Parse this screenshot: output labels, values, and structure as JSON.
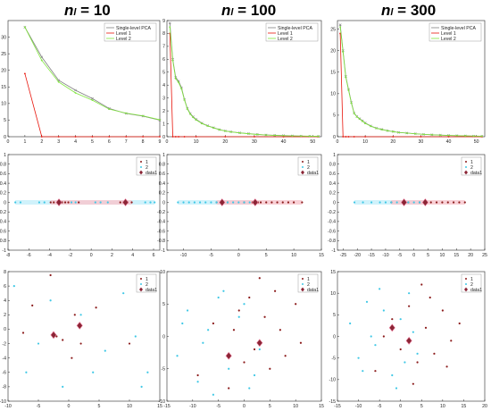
{
  "columns": [
    {
      "title_main": "n",
      "title_sub": "l",
      "title_eq": " = 10"
    },
    {
      "title_main": "n",
      "title_sub": "l",
      "title_eq": " = 100"
    },
    {
      "title_main": "n",
      "title_sub": "l",
      "title_eq": " = 300"
    }
  ],
  "colors": {
    "pca": "#808080",
    "level1": "#e8140a",
    "level2": "#7fe63c",
    "c1": "#8b1a1a",
    "c2": "#3fc8e6",
    "centroid": "#8b2535",
    "shade1": "#f7c8cf",
    "shade2": "#c8f0fa"
  },
  "chart_data": [
    {
      "type": "line",
      "panel": "r1c1",
      "xlim": [
        0,
        9
      ],
      "ylim": [
        0,
        35
      ],
      "xticks": [
        0,
        1,
        2,
        3,
        4,
        5,
        6,
        7,
        8,
        9
      ],
      "yticks": [
        0,
        5,
        10,
        15,
        20,
        25,
        30
      ],
      "legend": [
        "Single-level PCA",
        "Level 1",
        "Level 2"
      ],
      "series": [
        {
          "name": "Single-level PCA",
          "x": [
            1,
            2,
            3,
            4,
            5,
            6,
            7,
            8,
            9
          ],
          "y": [
            33,
            24,
            17,
            14,
            11.5,
            8.5,
            7,
            6.2,
            5
          ]
        },
        {
          "name": "Level 1",
          "x": [
            1,
            2,
            3,
            4,
            5,
            6,
            7,
            8,
            9
          ],
          "y": [
            19,
            0,
            0,
            0,
            0,
            0,
            0,
            0,
            0
          ]
        },
        {
          "name": "Level 2",
          "x": [
            1,
            2,
            3,
            4,
            5,
            6,
            7,
            8,
            9
          ],
          "y": [
            33,
            23,
            16.5,
            13.2,
            11,
            8.3,
            7.1,
            6.3,
            5.1
          ]
        }
      ]
    },
    {
      "type": "line",
      "panel": "r1c2",
      "xlim": [
        0,
        53
      ],
      "ylim": [
        0,
        9
      ],
      "xticks": [
        0,
        10,
        20,
        30,
        40,
        50
      ],
      "yticks": [
        0,
        1,
        2,
        3,
        4,
        5,
        6,
        7,
        8,
        9
      ],
      "legend": [
        "Single-level PCA",
        "Level 1",
        "Level 2"
      ],
      "series": [
        {
          "name": "Single-level PCA",
          "x": [
            1,
            2,
            3,
            4,
            5,
            6,
            7,
            8,
            9,
            10,
            12,
            14,
            16,
            18,
            20,
            22,
            25,
            28,
            31,
            34,
            37,
            40,
            43,
            46,
            49,
            52
          ],
          "y": [
            8.8,
            6,
            4.6,
            4.3,
            3.8,
            2.9,
            2.2,
            1.8,
            1.55,
            1.35,
            1.05,
            0.85,
            0.7,
            0.55,
            0.45,
            0.38,
            0.3,
            0.24,
            0.18,
            0.14,
            0.11,
            0.09,
            0.07,
            0.05,
            0.04,
            0.03
          ]
        },
        {
          "name": "Level 1",
          "x": [
            1,
            2,
            3,
            4,
            6,
            10,
            20,
            30,
            40,
            52
          ],
          "y": [
            8,
            0,
            0,
            0,
            0,
            0,
            0,
            0,
            0,
            0
          ]
        },
        {
          "name": "Level 2",
          "x": [
            1,
            2,
            3,
            4,
            5,
            6,
            7,
            8,
            9,
            10,
            12,
            14,
            16,
            18,
            20,
            22,
            25,
            28,
            31,
            34,
            37,
            40,
            43,
            46,
            49,
            52
          ],
          "y": [
            8.5,
            5.9,
            4.5,
            4.2,
            3.7,
            2.85,
            2.15,
            1.75,
            1.5,
            1.3,
            1.02,
            0.83,
            0.68,
            0.54,
            0.44,
            0.37,
            0.29,
            0.23,
            0.17,
            0.13,
            0.1,
            0.08,
            0.06,
            0.05,
            0.04,
            0.03
          ]
        }
      ]
    },
    {
      "type": "line",
      "panel": "r1c3",
      "xlim": [
        0,
        53
      ],
      "ylim": [
        0,
        27
      ],
      "xticks": [
        0,
        10,
        20,
        30,
        40,
        50
      ],
      "yticks": [
        0,
        5,
        10,
        15,
        20,
        25
      ],
      "legend": [
        "Single-level PCA",
        "Level 1",
        "Level 2"
      ],
      "series": [
        {
          "name": "Single-level PCA",
          "x": [
            1,
            2,
            3,
            4,
            5,
            6,
            7,
            8,
            9,
            10,
            12,
            14,
            16,
            18,
            20,
            22,
            25,
            28,
            31,
            34,
            37,
            40,
            43,
            46,
            49,
            52
          ],
          "y": [
            26,
            20,
            14,
            11,
            8,
            5.5,
            4.7,
            4.2,
            3.7,
            3.2,
            2.5,
            2,
            1.7,
            1.4,
            1.2,
            1,
            0.85,
            0.7,
            0.55,
            0.45,
            0.38,
            0.3,
            0.25,
            0.2,
            0.15,
            0.12
          ]
        },
        {
          "name": "Level 1",
          "x": [
            1,
            2,
            3,
            4,
            6,
            10,
            20,
            30,
            40,
            52
          ],
          "y": [
            24,
            0,
            0,
            0,
            0,
            0,
            0,
            0,
            0,
            0
          ]
        },
        {
          "name": "Level 2",
          "x": [
            1,
            2,
            3,
            4,
            5,
            6,
            7,
            8,
            9,
            10,
            12,
            14,
            16,
            18,
            20,
            22,
            25,
            28,
            31,
            34,
            37,
            40,
            43,
            46,
            49,
            52
          ],
          "y": [
            25.5,
            19.7,
            13.8,
            10.8,
            7.8,
            5.4,
            4.6,
            4.1,
            3.6,
            3.1,
            2.45,
            1.95,
            1.65,
            1.38,
            1.18,
            0.98,
            0.83,
            0.68,
            0.54,
            0.44,
            0.37,
            0.29,
            0.24,
            0.19,
            0.15,
            0.12
          ]
        }
      ]
    },
    {
      "type": "scatter",
      "panel": "r2c1",
      "xlim": [
        -8,
        6.6
      ],
      "ylim": [
        -1,
        1
      ],
      "xticks": [
        -8,
        -6,
        -4,
        -2,
        0,
        2,
        4,
        6
      ],
      "yticks": [
        -1,
        -0.8,
        -0.6,
        -0.4,
        -0.2,
        0,
        0.2,
        0.4,
        0.6,
        0.8,
        1
      ],
      "legend": [
        "1",
        "2",
        "data1"
      ],
      "series": [
        {
          "name": "1",
          "x": [
            -3.9,
            -3.6,
            -3.2,
            -2.8,
            -2.5,
            -2.2,
            2.8,
            3.1,
            3.5,
            3.9,
            -1.2
          ],
          "y": [
            0,
            0,
            0,
            0,
            0,
            0,
            0,
            0,
            0,
            0,
            0
          ]
        },
        {
          "name": "2",
          "x": [
            -7.3,
            -6.8,
            -5,
            -4.5,
            -1.9,
            -1.5,
            0.4,
            0.9,
            1.6,
            5.2,
            5.7,
            6.1
          ],
          "y": [
            0,
            0,
            0,
            0,
            0,
            0,
            0,
            0,
            0,
            0,
            0,
            0
          ]
        },
        {
          "name": "data1",
          "x": [
            -3.1,
            3.3
          ],
          "y": [
            0,
            0
          ]
        }
      ]
    },
    {
      "type": "scatter",
      "panel": "r2c2",
      "xlim": [
        -13,
        15
      ],
      "ylim": [
        -1,
        1
      ],
      "xticks": [
        -10,
        -5,
        0,
        5,
        10,
        15
      ],
      "yticks": [
        -1,
        -0.8,
        -0.6,
        -0.4,
        -0.2,
        0,
        0.2,
        0.4,
        0.6,
        0.8,
        1
      ],
      "legend": [
        "1",
        "2",
        "data1"
      ],
      "series": [
        {
          "name": "1",
          "x": [
            -4,
            -2,
            1,
            2.5,
            3.5,
            4,
            5,
            6,
            7,
            8,
            9,
            10,
            11.5
          ],
          "y": [
            0,
            0,
            0,
            0,
            0,
            0,
            0,
            0,
            0,
            0,
            0,
            0,
            0
          ]
        },
        {
          "name": "2",
          "x": [
            -11,
            -10,
            -9,
            -8,
            -7,
            -6,
            -5,
            -4,
            -3,
            -2,
            -1,
            0,
            1,
            2
          ],
          "y": [
            0,
            0,
            0,
            0,
            0,
            0,
            0,
            0,
            0,
            0,
            0,
            0,
            0,
            0
          ]
        },
        {
          "name": "data1",
          "x": [
            -3,
            3
          ],
          "y": [
            0,
            0
          ]
        }
      ]
    },
    {
      "type": "scatter",
      "panel": "r2c3",
      "xlim": [
        -27,
        25
      ],
      "ylim": [
        -1,
        1
      ],
      "xticks": [
        -25,
        -20,
        -15,
        -10,
        -5,
        0,
        5,
        10,
        15,
        20,
        25
      ],
      "yticks": [
        -1,
        -0.8,
        -0.6,
        -0.4,
        -0.2,
        0,
        0.2,
        0.4,
        0.6,
        0.8,
        1
      ],
      "legend": [
        "1",
        "2",
        "data1"
      ],
      "series": [
        {
          "name": "1",
          "x": [
            -8,
            -2,
            2,
            4,
            6,
            8,
            10,
            12,
            14,
            16,
            18
          ],
          "y": [
            0,
            0,
            0,
            0,
            0,
            0,
            0,
            0,
            0,
            0,
            0
          ]
        },
        {
          "name": "2",
          "x": [
            -21,
            -18,
            -15,
            -12,
            -10,
            -8,
            -6,
            -4,
            -2,
            0,
            2,
            4
          ],
          "y": [
            0,
            0,
            0,
            0,
            0,
            0,
            0,
            0,
            0,
            0,
            0,
            0
          ]
        },
        {
          "name": "data1",
          "x": [
            -3.5,
            4
          ],
          "y": [
            0,
            0
          ]
        }
      ]
    },
    {
      "type": "scatter",
      "panel": "r3c1",
      "xlim": [
        -10,
        15
      ],
      "ylim": [
        -10,
        8
      ],
      "xticks": [
        -10,
        -5,
        0,
        5,
        10,
        15
      ],
      "yticks": [
        -10,
        -8,
        -6,
        -4,
        -2,
        0,
        2,
        4,
        6,
        8
      ],
      "legend": [
        "1",
        "2",
        "data1"
      ],
      "series": [
        {
          "name": "1",
          "x": [
            -7.5,
            -6,
            -3,
            -2,
            -1,
            0.5,
            1,
            2,
            4.5,
            10
          ],
          "y": [
            -0.5,
            3.3,
            7.5,
            -1,
            -1.5,
            -4,
            2,
            -2,
            3,
            -2
          ]
        },
        {
          "name": "2",
          "x": [
            -9,
            -7,
            -5,
            -3,
            -1,
            2,
            4,
            6,
            9,
            11,
            12,
            13
          ],
          "y": [
            6,
            -6,
            -2,
            4,
            -8,
            2,
            -6,
            -3,
            5,
            -1,
            -8,
            -6
          ]
        },
        {
          "name": "data1",
          "x": [
            -2.5,
            1.8
          ],
          "y": [
            -0.8,
            0.5
          ]
        }
      ]
    },
    {
      "type": "scatter",
      "panel": "r3c2",
      "xlim": [
        -15,
        15
      ],
      "ylim": [
        -10,
        10
      ],
      "xticks": [
        -15,
        -10,
        -5,
        0,
        5,
        10,
        15
      ],
      "yticks": [
        -10,
        -5,
        0,
        5,
        10
      ],
      "legend": [
        "1",
        "2",
        "data1"
      ],
      "series": [
        {
          "name": "1",
          "x": [
            -9,
            -6,
            -3,
            -1,
            1,
            2,
            4,
            5,
            6,
            7,
            8,
            10,
            11,
            3,
            0,
            -2
          ],
          "y": [
            -6,
            2,
            -8,
            4,
            6,
            -2,
            3,
            -5,
            7,
            1,
            -3,
            5,
            -1,
            9,
            -4,
            1
          ]
        },
        {
          "name": "2",
          "x": [
            -13,
            -11,
            -9,
            -7,
            -5,
            -3,
            -1,
            1,
            3,
            -12,
            -8,
            -4,
            0,
            2,
            -6
          ],
          "y": [
            -3,
            4,
            -7,
            1,
            6,
            -5,
            3,
            -8,
            -2,
            2,
            -1,
            7,
            5,
            -6,
            -9
          ]
        },
        {
          "name": "data1",
          "x": [
            -3,
            3
          ],
          "y": [
            -3,
            -1
          ]
        }
      ]
    },
    {
      "type": "scatter",
      "panel": "r3c3",
      "xlim": [
        -15,
        20
      ],
      "ylim": [
        -15,
        15
      ],
      "xticks": [
        -15,
        -10,
        -5,
        0,
        5,
        10,
        15,
        20
      ],
      "yticks": [
        -15,
        -10,
        -5,
        0,
        5,
        10,
        15
      ],
      "legend": [
        "1",
        "2",
        "data1"
      ],
      "series": [
        {
          "name": "1",
          "x": [
            -6,
            -2,
            0,
            2,
            4,
            6,
            8,
            10,
            12,
            14,
            -4,
            3,
            7,
            11,
            5
          ],
          "y": [
            -8,
            4,
            -3,
            7,
            -6,
            2,
            -4,
            6,
            -1,
            3,
            0,
            -11,
            9,
            -7,
            12
          ]
        },
        {
          "name": "2",
          "x": [
            -12,
            -10,
            -8,
            -6,
            -4,
            -2,
            0,
            2,
            4,
            -9,
            -5,
            -1,
            3,
            -7,
            1
          ],
          "y": [
            3,
            -5,
            8,
            -2,
            6,
            -9,
            4,
            10,
            -4,
            -8,
            11,
            -12,
            1,
            0,
            -6
          ]
        },
        {
          "name": "data1",
          "x": [
            -2,
            2
          ],
          "y": [
            2,
            -1
          ]
        }
      ]
    }
  ]
}
